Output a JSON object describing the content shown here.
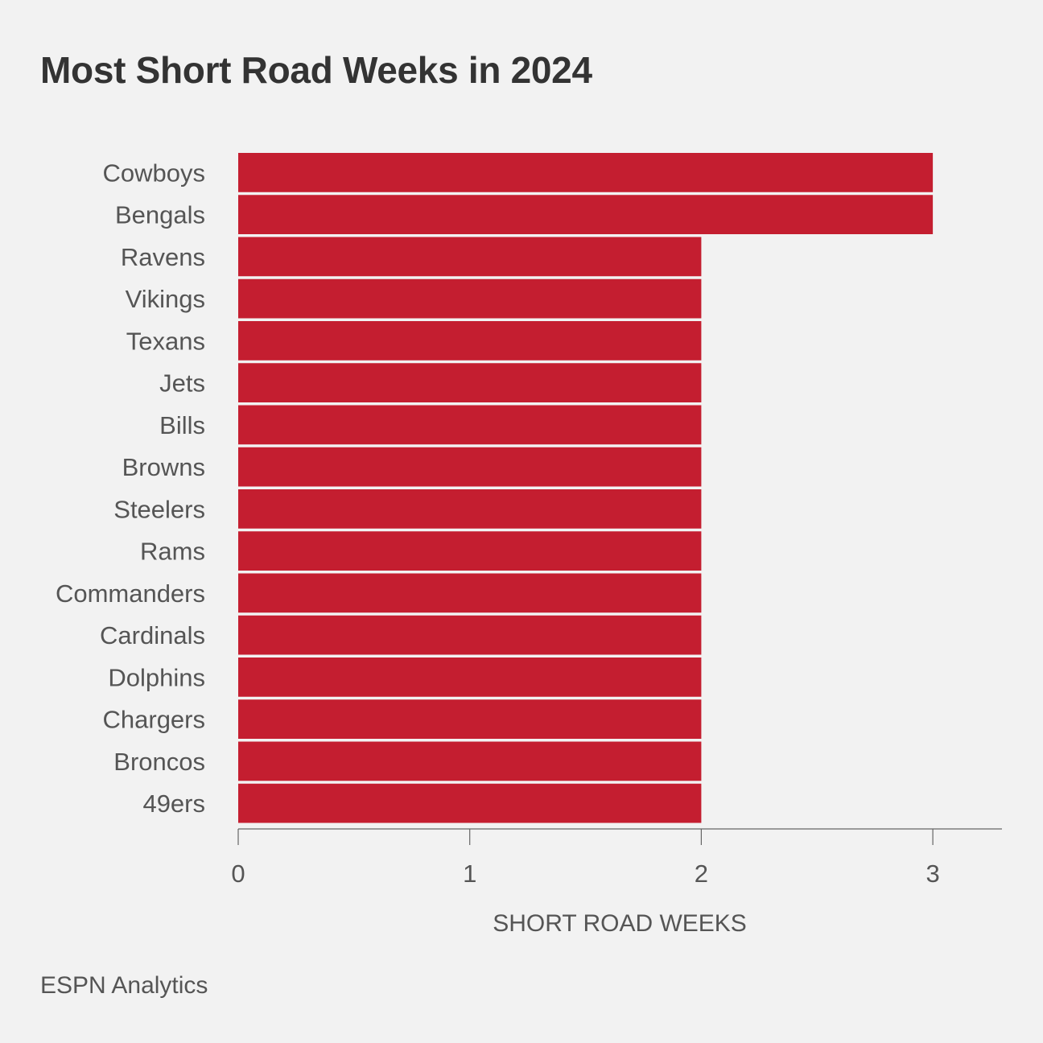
{
  "chart_data": {
    "type": "bar",
    "orientation": "horizontal",
    "title": "Most Short Road Weeks in 2024",
    "xlabel": "SHORT ROAD WEEKS",
    "ylabel": "",
    "categories": [
      "Cowboys",
      "Bengals",
      "Ravens",
      "Vikings",
      "Texans",
      "Jets",
      "Bills",
      "Browns",
      "Steelers",
      "Rams",
      "Commanders",
      "Cardinals",
      "Dolphins",
      "Chargers",
      "Broncos",
      "49ers"
    ],
    "values": [
      3,
      3,
      2,
      2,
      2,
      2,
      2,
      2,
      2,
      2,
      2,
      2,
      2,
      2,
      2,
      2
    ],
    "xlim": [
      0,
      3.3
    ],
    "x_ticks": [
      0,
      1,
      2,
      3
    ],
    "bar_color": "#c41e30",
    "grid": false,
    "legend": "none"
  },
  "source": "ESPN Analytics",
  "colors": {
    "background": "#f2f2f2",
    "bar": "#c41e30",
    "text": "#333333",
    "axis": "#555555"
  }
}
